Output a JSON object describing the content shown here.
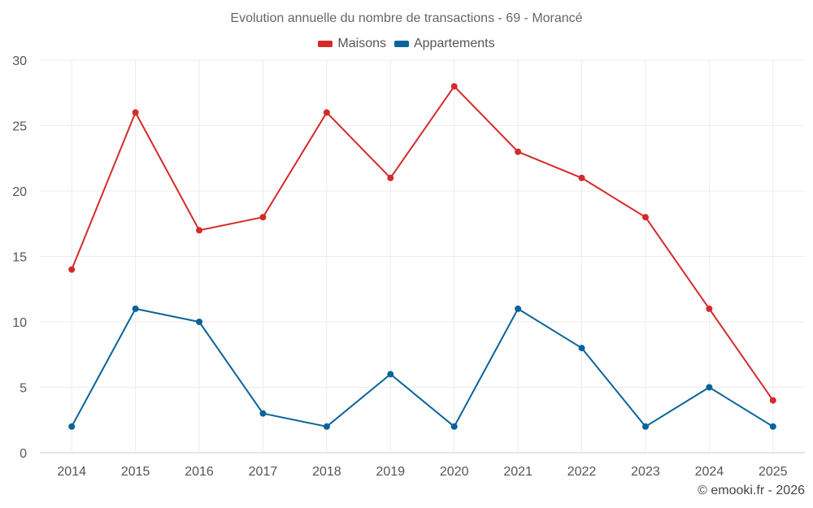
{
  "chart_data": {
    "type": "line",
    "title": "Evolution annuelle du nombre de transactions - 69 - Morancé",
    "xlabel": "",
    "ylabel": "",
    "categories": [
      "2014",
      "2015",
      "2016",
      "2017",
      "2018",
      "2019",
      "2020",
      "2021",
      "2022",
      "2023",
      "2024",
      "2025"
    ],
    "ylim": [
      0,
      30
    ],
    "yticks": [
      0,
      5,
      10,
      15,
      20,
      25,
      30
    ],
    "grid": true,
    "legend_position": "top-center",
    "series": [
      {
        "name": "Maisons",
        "color": "#d42a2a",
        "values": [
          14,
          26,
          17,
          18,
          26,
          21,
          28,
          23,
          21,
          18,
          11,
          4
        ]
      },
      {
        "name": "Appartements",
        "color": "#0b6399",
        "values": [
          2,
          11,
          10,
          3,
          2,
          6,
          2,
          11,
          8,
          2,
          5,
          2
        ]
      }
    ]
  },
  "credit": "© emooki.fr - 2026"
}
